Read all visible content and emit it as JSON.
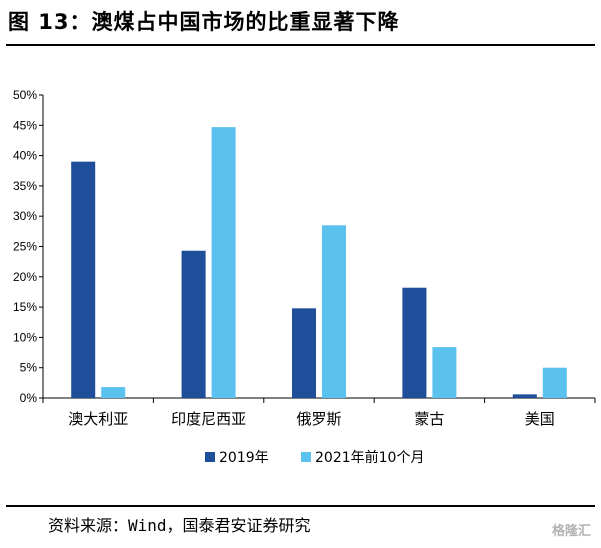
{
  "title": "图 13：澳煤占中国市场的比重显著下降",
  "source": "资料来源：Wind，国泰君安证券研究",
  "watermark": "格隆汇",
  "colors": {
    "series_2019": "#1f4e9a",
    "series_2021": "#5bc1ee"
  },
  "chart_data": {
    "type": "bar",
    "categories": [
      "澳大利亚",
      "印度尼西亚",
      "俄罗斯",
      "蒙古",
      "美国"
    ],
    "series": [
      {
        "name": "2019年",
        "values": [
          39,
          24.3,
          14.8,
          18.2,
          0.6
        ]
      },
      {
        "name": "2021年前10个月",
        "values": [
          1.8,
          44.7,
          28.5,
          8.4,
          5
        ]
      }
    ],
    "ylim": [
      0,
      50
    ],
    "yticks": [
      "0%",
      "5%",
      "10%",
      "15%",
      "20%",
      "25%",
      "30%",
      "35%",
      "40%",
      "45%",
      "50%"
    ],
    "legend_position": "bottom",
    "grid": false
  }
}
